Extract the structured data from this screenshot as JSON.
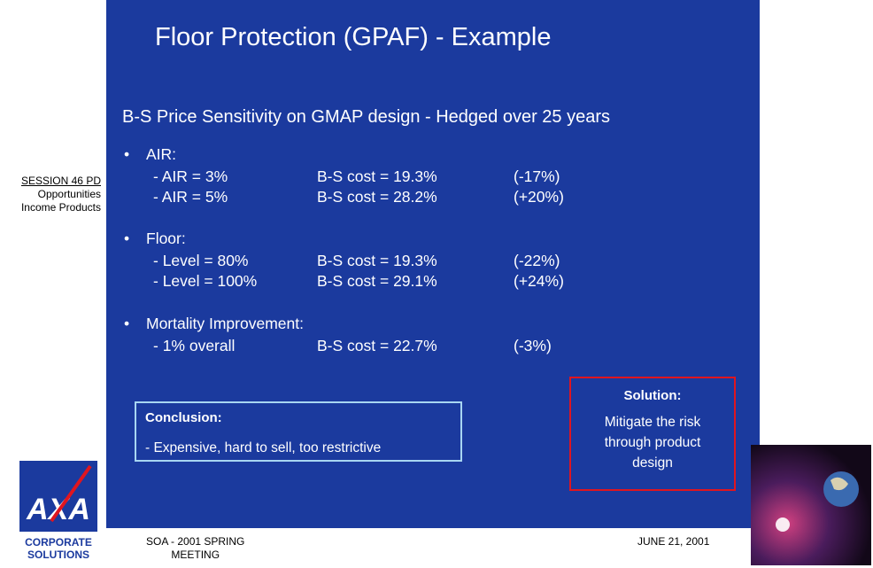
{
  "slide": {
    "title": "Floor Protection (GPAF) - Example",
    "subtitle": "B-S Price Sensitivity on GMAP design - Hedged over 25 years",
    "sections": [
      {
        "heading": "AIR:",
        "rows": [
          [
            "- AIR = 3%",
            "B-S cost =  19.3%",
            "(-17%)"
          ],
          [
            "- AIR = 5%",
            "B-S cost =  28.2%",
            "(+20%)"
          ]
        ]
      },
      {
        "heading": "Floor:",
        "rows": [
          [
            "- Level = 80%",
            "B-S cost =  19.3%",
            "(-22%)"
          ],
          [
            "- Level = 100%",
            "B-S cost =  29.1%",
            "(+24%)"
          ]
        ]
      },
      {
        "heading": "Mortality Improvement:",
        "rows": [
          [
            "- 1% overall",
            "B-S cost =  22.7%",
            "(-3%)"
          ]
        ]
      }
    ],
    "conclusion": {
      "heading": "Conclusion:",
      "text": "- Expensive, hard to sell, too restrictive"
    },
    "solution": {
      "heading": "Solution:",
      "lines": [
        "Mitigate the risk",
        "through product",
        "design"
      ]
    }
  },
  "sidebar": {
    "session": "SESSION 46 PD",
    "lines": [
      "Opportunities",
      "Income Products"
    ]
  },
  "logo": {
    "brand": "AXA",
    "lines": [
      "CORPORATE",
      "SOLUTIONS"
    ]
  },
  "footer": {
    "left": "SOA - 2001 SPRING",
    "left2": "MEETING",
    "right": "JUNE 21, 2001"
  }
}
